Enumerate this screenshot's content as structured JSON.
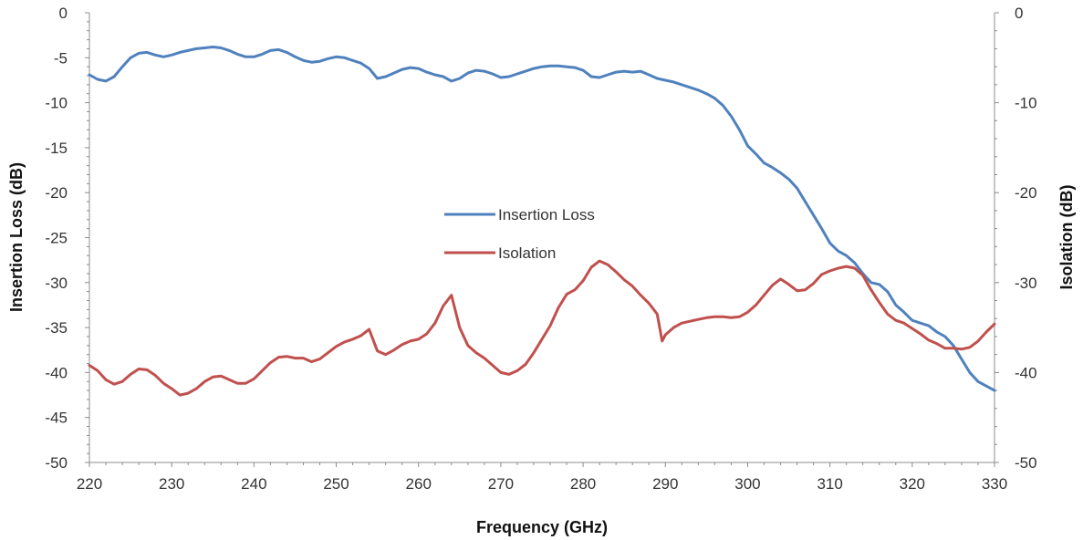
{
  "chart_data": {
    "type": "line",
    "title": "",
    "xlabel": "Frequency (GHz)",
    "ylabel_left": "Insertion Loss (dB)",
    "ylabel_right": "Isolation (dB)",
    "xlim": [
      220,
      330
    ],
    "ylim_left": [
      -50,
      0
    ],
    "ylim_right": [
      -50,
      0
    ],
    "x_ticks": [
      220,
      230,
      240,
      250,
      260,
      270,
      280,
      290,
      300,
      310,
      320,
      330
    ],
    "y_ticks_left": [
      0,
      -5,
      -10,
      -15,
      -20,
      -25,
      -30,
      -35,
      -40,
      -45,
      -50
    ],
    "y_ticks_right": [
      0,
      -10,
      -20,
      -30,
      -40,
      -50
    ],
    "grid": false,
    "legend_position": "center",
    "series": [
      {
        "name": "Insertion Loss",
        "color": "#4f81bd",
        "axis": "left",
        "x": [
          220,
          221,
          222,
          223,
          224,
          225,
          226,
          227,
          228,
          229,
          230,
          231,
          232,
          233,
          234,
          235,
          236,
          237,
          238,
          239,
          240,
          241,
          242,
          243,
          244,
          245,
          246,
          247,
          248,
          249,
          250,
          251,
          252,
          253,
          254,
          255,
          256,
          257,
          258,
          259,
          260,
          261,
          262,
          263,
          264,
          265,
          266,
          267,
          268,
          269,
          270,
          271,
          272,
          273,
          274,
          275,
          276,
          277,
          278,
          279,
          280,
          281,
          282,
          283,
          284,
          285,
          286,
          287,
          288,
          289,
          290,
          291,
          292,
          293,
          294,
          295,
          296,
          297,
          298,
          299,
          300,
          301,
          302,
          303,
          304,
          305,
          306,
          307,
          308,
          309,
          310,
          311,
          312,
          313,
          314,
          315,
          316,
          317,
          318,
          319,
          320,
          321,
          322,
          323,
          324,
          325,
          326,
          327,
          328,
          329,
          330
        ],
        "y": [
          -6.9,
          -7.4,
          -7.6,
          -7.1,
          -6.0,
          -5.0,
          -4.5,
          -4.4,
          -4.7,
          -4.9,
          -4.7,
          -4.4,
          -4.2,
          -4.0,
          -3.9,
          -3.8,
          -3.9,
          -4.2,
          -4.6,
          -4.9,
          -4.9,
          -4.6,
          -4.2,
          -4.1,
          -4.4,
          -4.9,
          -5.3,
          -5.5,
          -5.4,
          -5.1,
          -4.9,
          -5.0,
          -5.3,
          -5.6,
          -6.2,
          -7.3,
          -7.1,
          -6.7,
          -6.3,
          -6.1,
          -6.2,
          -6.6,
          -6.9,
          -7.1,
          -7.6,
          -7.3,
          -6.7,
          -6.4,
          -6.5,
          -6.8,
          -7.2,
          -7.1,
          -6.8,
          -6.5,
          -6.2,
          -6.0,
          -5.9,
          -5.9,
          -6.0,
          -6.1,
          -6.4,
          -7.1,
          -7.2,
          -6.9,
          -6.6,
          -6.5,
          -6.6,
          -6.5,
          -6.9,
          -7.3,
          -7.5,
          -7.7,
          -8.0,
          -8.3,
          -8.6,
          -9.0,
          -9.5,
          -10.3,
          -11.5,
          -13.0,
          -14.8,
          -15.7,
          -16.7,
          -17.2,
          -17.8,
          -18.5,
          -19.5,
          -21.0,
          -22.5,
          -24.0,
          -25.6,
          -26.5,
          -27.0,
          -27.8,
          -29.0,
          -30.0,
          -30.2,
          -31.0,
          -32.5,
          -33.3,
          -34.2,
          -34.5,
          -34.8,
          -35.5,
          -36.0,
          -37.0,
          -38.5,
          -40.0,
          -41.0,
          -41.5,
          -42.0
        ]
      },
      {
        "name": "Isolation",
        "color": "#c0504d",
        "axis": "right",
        "x": [
          220,
          221,
          222,
          223,
          224,
          225,
          226,
          227,
          228,
          229,
          230,
          231,
          232,
          233,
          234,
          235,
          236,
          237,
          238,
          239,
          240,
          241,
          242,
          243,
          244,
          245,
          246,
          247,
          248,
          249,
          250,
          251,
          252,
          253,
          254,
          255,
          256,
          257,
          258,
          259,
          260,
          261,
          262,
          263,
          264,
          265,
          266,
          267,
          268,
          269,
          270,
          271,
          272,
          273,
          274,
          275,
          276,
          277,
          278,
          279,
          280,
          281,
          282,
          283,
          284,
          285,
          286,
          287,
          288,
          289,
          289.6,
          290,
          291,
          292,
          293,
          294,
          295,
          296,
          297,
          298,
          299,
          300,
          301,
          302,
          303,
          304,
          305,
          306,
          307,
          308,
          309,
          310,
          311,
          312,
          313,
          314,
          315,
          316,
          317,
          318,
          319,
          320,
          321,
          322,
          323,
          324,
          325,
          326,
          327,
          328,
          329,
          330
        ],
        "y": [
          -39.2,
          -39.8,
          -40.8,
          -41.3,
          -41.0,
          -40.2,
          -39.6,
          -39.7,
          -40.3,
          -41.2,
          -41.8,
          -42.5,
          -42.3,
          -41.8,
          -41.0,
          -40.5,
          -40.4,
          -40.8,
          -41.2,
          -41.2,
          -40.7,
          -39.8,
          -38.9,
          -38.3,
          -38.2,
          -38.4,
          -38.4,
          -38.8,
          -38.5,
          -37.8,
          -37.1,
          -36.6,
          -36.3,
          -35.9,
          -35.2,
          -37.6,
          -38.0,
          -37.5,
          -36.9,
          -36.5,
          -36.3,
          -35.7,
          -34.5,
          -32.6,
          -31.4,
          -35.0,
          -37.0,
          -37.8,
          -38.4,
          -39.2,
          -40.0,
          -40.2,
          -39.8,
          -39.1,
          -37.8,
          -36.3,
          -34.8,
          -32.8,
          -31.3,
          -30.8,
          -29.8,
          -28.3,
          -27.6,
          -28.0,
          -28.8,
          -29.7,
          -30.4,
          -31.4,
          -32.3,
          -33.5,
          -36.5,
          -35.8,
          -35.0,
          -34.5,
          -34.3,
          -34.1,
          -33.9,
          -33.8,
          -33.8,
          -33.9,
          -33.8,
          -33.3,
          -32.5,
          -31.4,
          -30.3,
          -29.6,
          -30.2,
          -30.9,
          -30.8,
          -30.1,
          -29.1,
          -28.7,
          -28.4,
          -28.2,
          -28.4,
          -29.2,
          -30.8,
          -32.2,
          -33.5,
          -34.2,
          -34.5,
          -35.1,
          -35.7,
          -36.4,
          -36.8,
          -37.3,
          -37.3,
          -37.4,
          -37.2,
          -36.5,
          -35.5,
          -34.6
        ]
      }
    ]
  }
}
